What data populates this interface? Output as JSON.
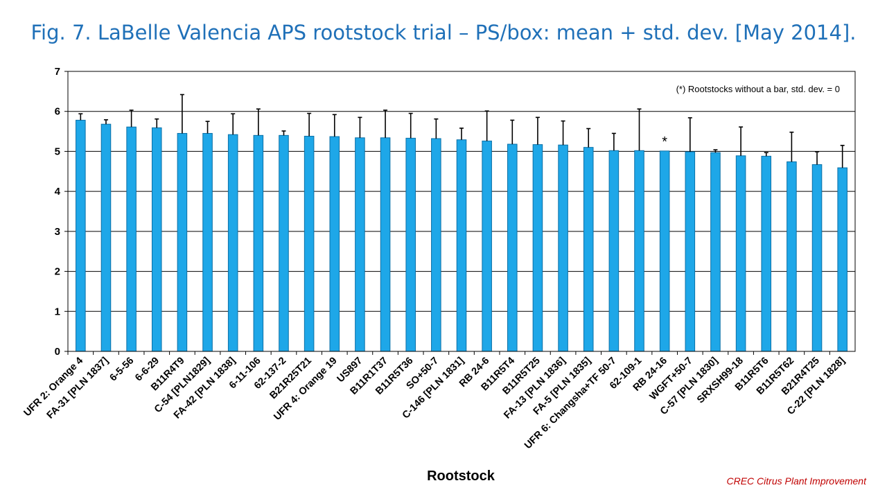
{
  "title": "Fig. 7. LaBelle Valencia APS rootstock trial – PS/box: mean + std. dev. [May 2014].",
  "credit": "CREC Citrus Plant Improvement",
  "colors": {
    "bar": "#1ea7e8",
    "bar_edge": "#0b6fa6",
    "title": "#1f70b8",
    "credit": "#c00000"
  },
  "chart_data": {
    "type": "bar",
    "title": "Fig. 7. LaBelle Valencia APS rootstock trial – PS/box: mean + std. dev. [May 2014].",
    "xlabel": "Rootstock",
    "ylabel": "",
    "ylim": [
      0,
      7
    ],
    "yticks": [
      0,
      1,
      2,
      3,
      4,
      5,
      6,
      7
    ],
    "grid": true,
    "note": "(*) Rootstocks without  a bar, std. dev. = 0",
    "star_label": "*",
    "star_category": "RB 24-16",
    "categories": [
      "UFR 2: Orange 4",
      "FA-31 [PLN 1837]",
      "6-5-56",
      "6-6-29",
      "B11R4T9",
      "C-54 [PLN1829]",
      "FA-42 [PLN 1838]",
      "6-11-106",
      "62-137-2",
      "B21R25T21",
      "UFR 4: Orange 19",
      "US897",
      "B11R1T37",
      "B11R5T36",
      "SO+50-7",
      "C-146 [PLN 1831]",
      "RB 24-6",
      "B11R5T4",
      "B11R5T25",
      "FA-13 [PLN 1836]",
      "FA-5 [PLN 1835]",
      "UFR 6: Changsha+TF 50-7",
      "62-109-1",
      "RB 24-16",
      "WGFT+50-7",
      "C-57 [PLN 1830]",
      "SRXSH99-18",
      "B11R5T6",
      "B11R5T62",
      "B21R4T25",
      "C-22 [PLN 1828]"
    ],
    "values": [
      5.78,
      5.68,
      5.61,
      5.59,
      5.45,
      5.45,
      5.42,
      5.4,
      5.4,
      5.38,
      5.37,
      5.34,
      5.34,
      5.33,
      5.32,
      5.29,
      5.26,
      5.18,
      5.17,
      5.16,
      5.1,
      5.02,
      5.02,
      5.01,
      4.99,
      4.97,
      4.89,
      4.88,
      4.74,
      4.67,
      4.59
    ],
    "std_dev": [
      0.16,
      0.11,
      0.42,
      0.22,
      0.97,
      0.3,
      0.52,
      0.66,
      0.11,
      0.57,
      0.55,
      0.51,
      0.69,
      0.62,
      0.49,
      0.29,
      0.75,
      0.6,
      0.68,
      0.6,
      0.47,
      0.43,
      1.04,
      0.0,
      0.85,
      0.07,
      0.72,
      0.09,
      0.74,
      0.32,
      0.56
    ]
  }
}
